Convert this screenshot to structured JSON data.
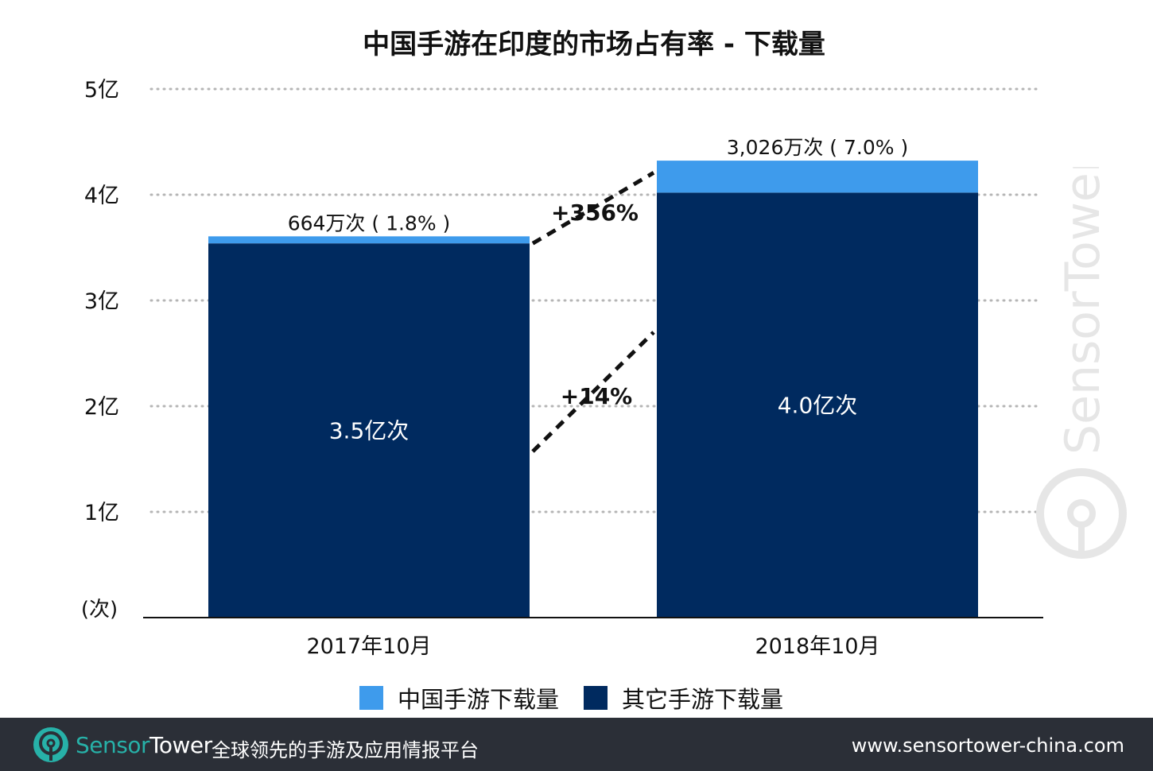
{
  "chart_data": {
    "type": "bar",
    "stacked": true,
    "title": "中国手游在印度的市场占有率 - 下载量",
    "unit_label": "(次)",
    "categories": [
      "2017年10月",
      "2018年10月"
    ],
    "ylim": [
      0,
      5
    ],
    "yticks": [
      {
        "value": 1,
        "label": "1亿"
      },
      {
        "value": 2,
        "label": "2亿"
      },
      {
        "value": 3,
        "label": "3亿"
      },
      {
        "value": 4,
        "label": "4亿"
      },
      {
        "value": 5,
        "label": "5亿"
      }
    ],
    "grid": true,
    "legend_position": "bottom",
    "series": [
      {
        "name": "其它手游下载量",
        "color": "#002a5f",
        "values": [
          3.54,
          4.02
        ],
        "labels": [
          "3.5亿次",
          "4.0亿次"
        ]
      },
      {
        "name": "中国手游下载量",
        "color": "#3e9bec",
        "values": [
          0.0664,
          0.3026
        ],
        "labels": [
          "664万次 ( 1.8% )",
          "3,026万次 ( 7.0% )"
        ]
      }
    ],
    "annotations": [
      {
        "text": "+356%",
        "series": "中国手游下载量"
      },
      {
        "text": "+14%",
        "series": "其它手游下载量"
      }
    ]
  },
  "legend": {
    "items": [
      {
        "label": "中国手游下载量",
        "color": "#3e9bec"
      },
      {
        "label": "其它手游下载量",
        "color": "#002a5f"
      }
    ]
  },
  "watermark": {
    "text": "SensorTower"
  },
  "footer": {
    "brand_sensor": "Sensor",
    "brand_tower": "Tower",
    "tagline": "全球领先的手游及应用情报平台",
    "url": "www.sensortower-china.com",
    "background": "#2b2f37",
    "brand_color": "#27b1a8"
  }
}
